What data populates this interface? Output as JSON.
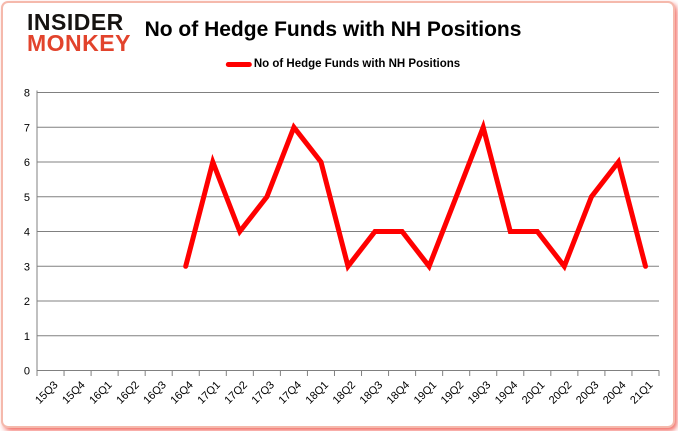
{
  "header": {
    "logo_line1": "INSIDER",
    "logo_line2": "MONKEY",
    "title": "No of Hedge Funds with NH Positions"
  },
  "legend": {
    "label": "No of Hedge Funds with NH Positions"
  },
  "colors": {
    "line": "#ff0000",
    "grid": "#808080",
    "axis": "#808080",
    "tick_label": "#000000",
    "logo_black": "#161311",
    "logo_red": "#e2432c",
    "frame_border": "#f5b9ac",
    "frame_shadow": "#ec3228",
    "background": "#ffffff"
  },
  "chart_data": {
    "type": "line",
    "title": "No of Hedge Funds with NH Positions",
    "categories": [
      "15Q3",
      "15Q4",
      "16Q1",
      "16Q2",
      "16Q3",
      "16Q4",
      "17Q1",
      "17Q2",
      "17Q3",
      "17Q4",
      "18Q1",
      "18Q2",
      "18Q3",
      "18Q4",
      "19Q1",
      "19Q2",
      "19Q3",
      "19Q4",
      "20Q1",
      "20Q2",
      "20Q3",
      "20Q4",
      "21Q1"
    ],
    "series": [
      {
        "name": "No of Hedge Funds with NH Positions",
        "values": [
          null,
          null,
          null,
          null,
          null,
          3,
          6,
          4,
          5,
          7,
          6,
          3,
          4,
          4,
          3,
          5,
          7,
          4,
          4,
          3,
          5,
          6,
          3
        ]
      }
    ],
    "ylim": [
      0,
      8
    ],
    "yticks": [
      0,
      1,
      2,
      3,
      4,
      5,
      6,
      7,
      8
    ],
    "grid": "horizontal",
    "legend_position": "top-center",
    "xlabel": "",
    "ylabel": ""
  }
}
